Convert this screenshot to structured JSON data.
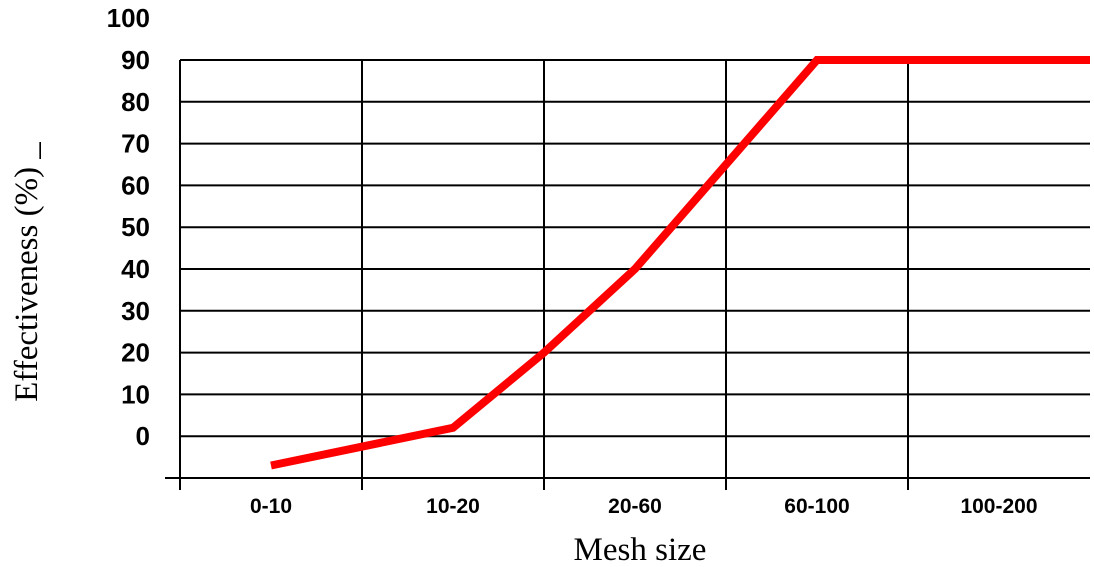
{
  "chart_data": {
    "type": "line",
    "title": "",
    "xlabel": "Mesh size",
    "ylabel": "Effectiveness (%) _",
    "categories": [
      "0-10",
      "10-20",
      "20-60",
      "60-100",
      "100-200"
    ],
    "yticks": [
      "100",
      "90",
      "80",
      "70",
      "60",
      "50",
      "40",
      "30",
      "20",
      "10",
      "0"
    ],
    "ylim": [
      -10,
      100
    ],
    "grid": true,
    "legend": "none",
    "series": [
      {
        "color": "#ff0000",
        "x": [
          0.5,
          1.5,
          2.0,
          2.5,
          3.0,
          3.5,
          4.0,
          5.0
        ],
        "y": [
          -7,
          2,
          20,
          40,
          65,
          90,
          90,
          90
        ]
      }
    ]
  }
}
